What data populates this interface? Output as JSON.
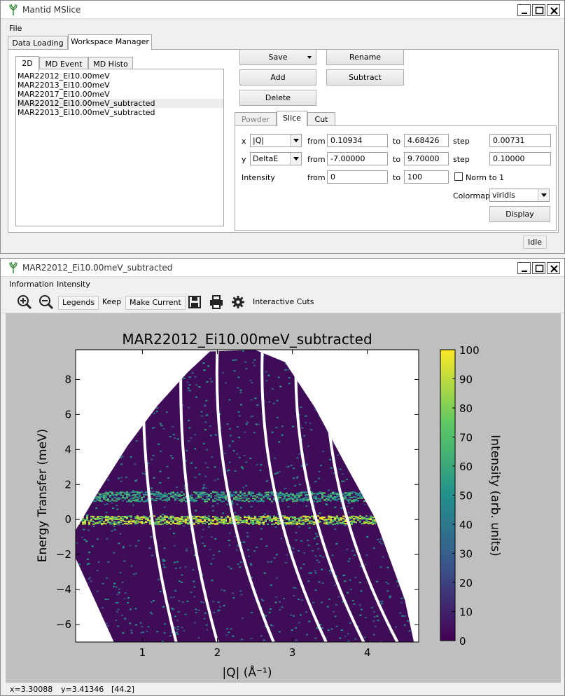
{
  "main_window": {
    "title": "Mantid MSlice",
    "menu": [
      "File"
    ],
    "tabs": [
      "Data Loading",
      "Workspace Manager"
    ],
    "subtabs": [
      "2D",
      "MD Event",
      "MD Histo"
    ],
    "workspaces": [
      "MAR22012_Ei10.00meV",
      "MAR22013_Ei10.00meV",
      "MAR22017_Ei10.00meV",
      "MAR22012_Ei10.00meV_subtracted",
      "MAR22013_Ei10.00meV_subtracted"
    ],
    "buttons": {
      "save": "Save",
      "rename": "Rename",
      "add": "Add",
      "subtract": "Subtract",
      "delete": "Delete"
    },
    "mode_tabs": [
      "Powder",
      "Slice",
      "Cut"
    ],
    "slice": {
      "x_label": "x",
      "x_axis": "|Q|",
      "x_from": "0.10934",
      "x_to": "4.68426",
      "x_step": "0.00731",
      "y_label": "y",
      "y_axis": "DeltaE",
      "y_from": "-7.00000",
      "y_to": "9.70000",
      "y_step": "0.10000",
      "intensity_label": "Intensity",
      "i_from": "0",
      "i_to": "100",
      "from_label": "from",
      "to_label": "to",
      "step_label": "step",
      "norm_label": "Norm to 1",
      "colormap_label": "Colormap",
      "colormap": "viridis",
      "display_button": "Display"
    },
    "status": "Idle"
  },
  "plot_window": {
    "title": "MAR22012_Ei10.00meV_subtracted",
    "menu": [
      "Information",
      "Intensity"
    ],
    "toolbar": {
      "legends": "Legends",
      "keep": "Keep",
      "make_current": "Make Current",
      "interactive_cuts": "Interactive Cuts"
    },
    "status": {
      "x": "x=3.30088",
      "y": "y=3.41346",
      "value": "[44.2]"
    }
  },
  "colors": {
    "viridis": [
      "#440154",
      "#3b528b",
      "#21918c",
      "#5ec962",
      "#fde725"
    ],
    "background": "#bfbfbf"
  },
  "chart_data": {
    "type": "heatmap",
    "title": "MAR22012_Ei10.00meV_subtracted",
    "xlabel": "|Q| (Å⁻¹)",
    "ylabel": "Energy Transfer (meV)",
    "colorbar_label": "Intensity (arb. units)",
    "colormap": "viridis",
    "xlim": [
      0.10934,
      4.68426
    ],
    "ylim": [
      -7.0,
      9.7
    ],
    "clim": [
      0,
      100
    ],
    "xticks": [
      "1",
      "2",
      "3",
      "4"
    ],
    "yticks": [
      "−6",
      "−4",
      "−2",
      "0",
      "2",
      "4",
      "6",
      "8"
    ],
    "cticks": [
      "0",
      "10",
      "20",
      "30",
      "40",
      "50",
      "60",
      "70",
      "80",
      "90",
      "100"
    ],
    "features": [
      {
        "name": "elastic line",
        "energy": 0.0,
        "intensity": "high"
      },
      {
        "name": "excitation band",
        "energy": 1.3,
        "intensity": "medium"
      }
    ]
  }
}
